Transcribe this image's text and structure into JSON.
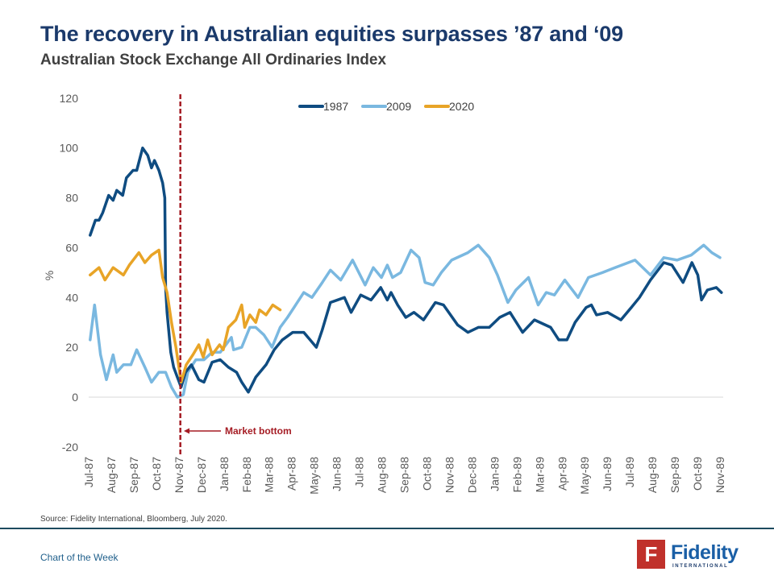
{
  "header": {
    "title": "The recovery in Australian equities surpasses ’87 and ‘09",
    "subtitle": "Australian Stock Exchange All Ordinaries Index"
  },
  "chart_data": {
    "type": "line",
    "title": "",
    "xlabel": "",
    "ylabel": "%",
    "ylim": [
      -20,
      120
    ],
    "yticks": [
      -20,
      0,
      20,
      40,
      60,
      80,
      100,
      120
    ],
    "xlim": [
      "1987-07-01",
      "1989-11-01"
    ],
    "xticks": [
      "Jul-87",
      "Aug-87",
      "Sep-87",
      "Oct-87",
      "Nov-87",
      "Dec-87",
      "Jan-88",
      "Feb-88",
      "Mar-88",
      "Apr-88",
      "May-88",
      "Jun-88",
      "Jul-88",
      "Aug-88",
      "Sep-88",
      "Oct-88",
      "Nov-88",
      "Dec-88",
      "Jan-89",
      "Feb-89",
      "Mar-89",
      "Apr-89",
      "May-89",
      "Jun-89",
      "Jul-89",
      "Aug-89",
      "Sep-89",
      "Oct-89",
      "Nov-89"
    ],
    "grid": "zero line only",
    "legend_position": "top-center",
    "annotation": {
      "label": "Market bottom",
      "x": "1987-11-02",
      "style": "dashed vertical line",
      "color": "#a51c24"
    },
    "series": [
      {
        "name": "1987",
        "color": "#0f4c81",
        "points": [
          [
            "1987-07-03",
            65
          ],
          [
            "1987-07-10",
            71
          ],
          [
            "1987-07-15",
            71
          ],
          [
            "1987-07-20",
            74
          ],
          [
            "1987-07-28",
            81
          ],
          [
            "1987-08-03",
            79
          ],
          [
            "1987-08-08",
            83
          ],
          [
            "1987-08-16",
            81
          ],
          [
            "1987-08-21",
            88
          ],
          [
            "1987-08-30",
            91
          ],
          [
            "1987-09-04",
            91
          ],
          [
            "1987-09-12",
            100
          ],
          [
            "1987-09-19",
            97
          ],
          [
            "1987-09-24",
            92
          ],
          [
            "1987-09-28",
            95
          ],
          [
            "1987-10-04",
            91
          ],
          [
            "1987-10-09",
            86
          ],
          [
            "1987-10-12",
            80
          ],
          [
            "1987-10-13",
            44
          ],
          [
            "1987-10-15",
            34
          ],
          [
            "1987-10-20",
            18
          ],
          [
            "1987-10-24",
            12
          ],
          [
            "1987-10-29",
            8
          ],
          [
            "1987-11-03",
            4
          ],
          [
            "1987-11-09",
            10
          ],
          [
            "1987-11-17",
            13
          ],
          [
            "1987-11-27",
            7
          ],
          [
            "1987-12-04",
            6
          ],
          [
            "1987-12-15",
            14
          ],
          [
            "1987-12-26",
            15
          ],
          [
            "1988-01-06",
            12
          ],
          [
            "1988-01-17",
            10
          ],
          [
            "1988-01-24",
            6
          ],
          [
            "1988-02-02",
            2
          ],
          [
            "1988-02-12",
            8
          ],
          [
            "1988-02-26",
            13
          ],
          [
            "1988-03-08",
            19
          ],
          [
            "1988-03-19",
            23
          ],
          [
            "1988-04-02",
            26
          ],
          [
            "1988-04-17",
            26
          ],
          [
            "1988-05-04",
            20
          ],
          [
            "1988-05-12",
            27
          ],
          [
            "1988-05-23",
            38
          ],
          [
            "1988-06-11",
            40
          ],
          [
            "1988-06-20",
            34
          ],
          [
            "1988-07-03",
            41
          ],
          [
            "1988-07-17",
            39
          ],
          [
            "1988-07-30",
            44
          ],
          [
            "1988-08-08",
            39
          ],
          [
            "1988-08-13",
            42
          ],
          [
            "1988-08-22",
            37
          ],
          [
            "1988-09-02",
            32
          ],
          [
            "1988-09-13",
            34
          ],
          [
            "1988-09-26",
            31
          ],
          [
            "1988-10-12",
            38
          ],
          [
            "1988-10-23",
            37
          ],
          [
            "1988-11-11",
            29
          ],
          [
            "1988-11-25",
            26
          ],
          [
            "1988-12-09",
            28
          ],
          [
            "1988-12-24",
            28
          ],
          [
            "1989-01-07",
            32
          ],
          [
            "1989-01-21",
            34
          ],
          [
            "1989-02-07",
            26
          ],
          [
            "1989-02-23",
            31
          ],
          [
            "1989-03-17",
            28
          ],
          [
            "1989-03-28",
            23
          ],
          [
            "1989-04-08",
            23
          ],
          [
            "1989-04-19",
            30
          ],
          [
            "1989-05-04",
            36
          ],
          [
            "1989-05-11",
            37
          ],
          [
            "1989-05-18",
            33
          ],
          [
            "1989-06-02",
            34
          ],
          [
            "1989-06-20",
            31
          ],
          [
            "1989-07-04",
            36
          ],
          [
            "1989-07-15",
            40
          ],
          [
            "1989-07-30",
            47
          ],
          [
            "1989-08-17",
            54
          ],
          [
            "1989-08-28",
            53
          ],
          [
            "1989-09-12",
            46
          ],
          [
            "1989-09-24",
            54
          ],
          [
            "1989-10-02",
            49
          ],
          [
            "1989-10-07",
            39
          ],
          [
            "1989-10-15",
            43
          ],
          [
            "1989-10-27",
            44
          ],
          [
            "1989-11-03",
            42
          ]
        ]
      },
      {
        "name": "2009",
        "color": "#7ab8e0",
        "points": [
          [
            "1987-07-03",
            23
          ],
          [
            "1987-07-09",
            37
          ],
          [
            "1987-07-17",
            17
          ],
          [
            "1987-07-25",
            7
          ],
          [
            "1987-08-03",
            17
          ],
          [
            "1987-08-08",
            10
          ],
          [
            "1987-08-17",
            13
          ],
          [
            "1987-08-27",
            13
          ],
          [
            "1987-09-04",
            19
          ],
          [
            "1987-09-15",
            12
          ],
          [
            "1987-09-24",
            6
          ],
          [
            "1987-10-04",
            10
          ],
          [
            "1987-10-13",
            10
          ],
          [
            "1987-10-21",
            4
          ],
          [
            "1987-10-29",
            0
          ],
          [
            "1987-11-06",
            1
          ],
          [
            "1987-11-12",
            10
          ],
          [
            "1987-11-23",
            15
          ],
          [
            "1987-12-04",
            15
          ],
          [
            "1987-12-15",
            18
          ],
          [
            "1987-12-26",
            18
          ],
          [
            "1988-01-10",
            24
          ],
          [
            "1988-01-13",
            19
          ],
          [
            "1988-01-24",
            20
          ],
          [
            "1988-02-04",
            28
          ],
          [
            "1988-02-12",
            28
          ],
          [
            "1988-02-23",
            25
          ],
          [
            "1988-03-05",
            20
          ],
          [
            "1988-03-16",
            28
          ],
          [
            "1988-03-26",
            32
          ],
          [
            "1988-04-06",
            37
          ],
          [
            "1988-04-17",
            42
          ],
          [
            "1988-04-28",
            40
          ],
          [
            "1988-05-12",
            46
          ],
          [
            "1988-05-23",
            51
          ],
          [
            "1988-06-06",
            47
          ],
          [
            "1988-06-22",
            55
          ],
          [
            "1988-07-09",
            45
          ],
          [
            "1988-07-20",
            52
          ],
          [
            "1988-07-31",
            48
          ],
          [
            "1988-08-08",
            53
          ],
          [
            "1988-08-15",
            48
          ],
          [
            "1988-08-26",
            50
          ],
          [
            "1988-09-09",
            59
          ],
          [
            "1988-09-20",
            56
          ],
          [
            "1988-09-28",
            46
          ],
          [
            "1988-10-09",
            45
          ],
          [
            "1988-10-20",
            50
          ],
          [
            "1988-11-03",
            55
          ],
          [
            "1988-11-25",
            58
          ],
          [
            "1988-12-09",
            61
          ],
          [
            "1988-12-24",
            56
          ],
          [
            "1989-01-04",
            49
          ],
          [
            "1989-01-18",
            38
          ],
          [
            "1989-01-29",
            43
          ],
          [
            "1989-02-15",
            48
          ],
          [
            "1989-02-28",
            37
          ],
          [
            "1989-03-11",
            42
          ],
          [
            "1989-03-22",
            41
          ],
          [
            "1989-04-05",
            47
          ],
          [
            "1989-04-23",
            40
          ],
          [
            "1989-05-07",
            48
          ],
          [
            "1989-05-26",
            50
          ],
          [
            "1989-06-12",
            52
          ],
          [
            "1989-07-09",
            55
          ],
          [
            "1989-07-30",
            49
          ],
          [
            "1989-08-17",
            56
          ],
          [
            "1989-09-04",
            55
          ],
          [
            "1989-09-23",
            57
          ],
          [
            "1989-10-10",
            61
          ],
          [
            "1989-10-21",
            58
          ],
          [
            "1989-11-01",
            56
          ]
        ]
      },
      {
        "name": "2020",
        "color": "#e8a427",
        "points": [
          [
            "1987-07-03",
            49
          ],
          [
            "1987-07-15",
            52
          ],
          [
            "1987-07-23",
            47
          ],
          [
            "1987-08-03",
            52
          ],
          [
            "1987-08-17",
            49
          ],
          [
            "1987-08-25",
            53
          ],
          [
            "1987-09-07",
            58
          ],
          [
            "1987-09-15",
            54
          ],
          [
            "1987-09-24",
            57
          ],
          [
            "1987-10-04",
            59
          ],
          [
            "1987-10-09",
            48
          ],
          [
            "1987-10-15",
            42
          ],
          [
            "1987-10-21",
            30
          ],
          [
            "1987-10-27",
            20
          ],
          [
            "1987-11-03",
            6
          ],
          [
            "1987-11-10",
            13
          ],
          [
            "1987-11-19",
            17
          ],
          [
            "1987-11-27",
            21
          ],
          [
            "1987-12-03",
            16
          ],
          [
            "1987-12-09",
            23
          ],
          [
            "1987-12-15",
            17
          ],
          [
            "1987-12-25",
            21
          ],
          [
            "1987-12-30",
            19
          ],
          [
            "1988-01-06",
            28
          ],
          [
            "1988-01-16",
            31
          ],
          [
            "1988-01-24",
            37
          ],
          [
            "1988-01-28",
            28
          ],
          [
            "1988-02-04",
            33
          ],
          [
            "1988-02-12",
            30
          ],
          [
            "1988-02-17",
            35
          ],
          [
            "1988-02-26",
            33
          ],
          [
            "1988-03-06",
            37
          ],
          [
            "1988-03-16",
            35
          ]
        ]
      }
    ]
  },
  "source": "Source: Fidelity International, Bloomberg, July 2020.",
  "footer": {
    "label": "Chart of the Week",
    "logo_word": "Fidelity",
    "logo_sub": "INTERNATIONAL",
    "logo_mark": "F",
    "brand_color": "#c0312b"
  }
}
